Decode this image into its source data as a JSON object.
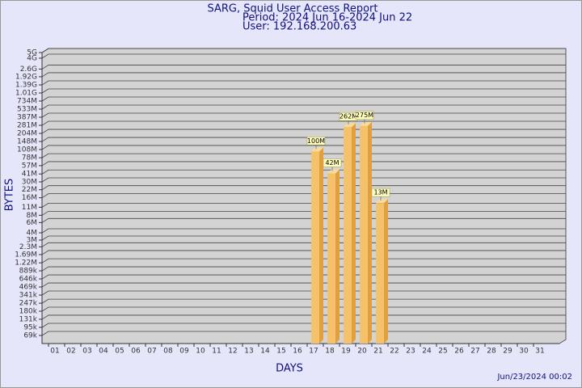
{
  "chart_data": {
    "type": "bar",
    "title": "SARG, Squid User Access Report",
    "subtitle": [
      "Period: 2024 Jun 16-2024 Jun 22",
      "User: 192.168.200.63"
    ],
    "xlabel": "DAYS",
    "ylabel": "BYTES",
    "footer": "Jun/23/2024 00:02",
    "categories": [
      "01",
      "02",
      "03",
      "04",
      "05",
      "06",
      "07",
      "08",
      "09",
      "10",
      "11",
      "12",
      "13",
      "14",
      "15",
      "16",
      "17",
      "18",
      "19",
      "20",
      "21",
      "22",
      "23",
      "24",
      "25",
      "26",
      "27",
      "28",
      "29",
      "30",
      "31"
    ],
    "values": [
      null,
      null,
      null,
      null,
      null,
      null,
      null,
      null,
      null,
      null,
      null,
      null,
      null,
      null,
      null,
      null,
      100000000,
      42000000,
      262000000,
      275000000,
      13000000,
      null,
      null,
      null,
      null,
      null,
      null,
      null,
      null,
      null,
      null
    ],
    "value_labels": [
      null,
      null,
      null,
      null,
      null,
      null,
      null,
      null,
      null,
      null,
      null,
      null,
      null,
      null,
      null,
      null,
      "100M",
      "42M",
      "262M",
      "275M",
      "13M",
      null,
      null,
      null,
      null,
      null,
      null,
      null,
      null,
      null,
      null
    ],
    "color": "#f5c26b",
    "log_scale": true,
    "grid": true,
    "ylim": [
      50100,
      5000000000
    ],
    "yticks": [
      {
        "value": 69000,
        "label": "69k"
      },
      {
        "value": 95000,
        "label": "95k"
      },
      {
        "value": 131000,
        "label": "131k"
      },
      {
        "value": 180000,
        "label": "180k"
      },
      {
        "value": 247000,
        "label": "247k"
      },
      {
        "value": 341000,
        "label": "341k"
      },
      {
        "value": 469000,
        "label": "469k"
      },
      {
        "value": 646000,
        "label": "646k"
      },
      {
        "value": 889000,
        "label": "889k"
      },
      {
        "value": 1220000,
        "label": "1.22M"
      },
      {
        "value": 1690000,
        "label": "1.69M"
      },
      {
        "value": 2300000,
        "label": "2.3M"
      },
      {
        "value": 3000000,
        "label": "3M"
      },
      {
        "value": 4000000,
        "label": "4M"
      },
      {
        "value": 6000000,
        "label": "6M"
      },
      {
        "value": 8000000,
        "label": "8M"
      },
      {
        "value": 11000000,
        "label": "11M"
      },
      {
        "value": 16000000,
        "label": "16M"
      },
      {
        "value": 22000000,
        "label": "22M"
      },
      {
        "value": 30000000,
        "label": "30M"
      },
      {
        "value": 41000000,
        "label": "41M"
      },
      {
        "value": 57000000,
        "label": "57M"
      },
      {
        "value": 78000000,
        "label": "78M"
      },
      {
        "value": 108000000,
        "label": "108M"
      },
      {
        "value": 148000000,
        "label": "148M"
      },
      {
        "value": 204000000,
        "label": "204M"
      },
      {
        "value": 281000000,
        "label": "281M"
      },
      {
        "value": 387000000,
        "label": "387M"
      },
      {
        "value": 533000000,
        "label": "533M"
      },
      {
        "value": 734000000,
        "label": "734M"
      },
      {
        "value": 1010000000,
        "label": "1.01G"
      },
      {
        "value": 1390000000,
        "label": "1.39G"
      },
      {
        "value": 1920000000,
        "label": "1.92G"
      },
      {
        "value": 2600000000,
        "label": "2.6G"
      },
      {
        "value": 4000000000,
        "label": "4G"
      },
      {
        "value": 5000000000,
        "label": "5G"
      }
    ]
  }
}
